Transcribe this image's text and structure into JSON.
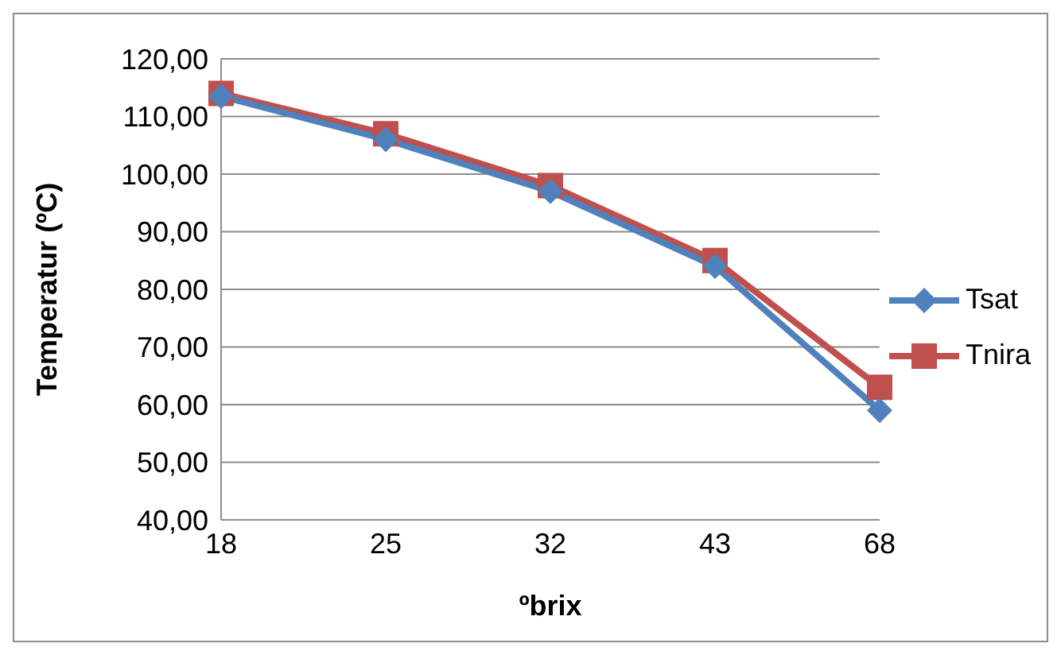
{
  "chart_data": {
    "type": "line",
    "xlabel": "ºbrix",
    "ylabel": "Temperatur (ºC)",
    "categories": [
      "18",
      "25",
      "32",
      "43",
      "68"
    ],
    "series": [
      {
        "name": "Tsat",
        "color": "#4f81bd",
        "marker": "diamond",
        "values": [
          113.5,
          106,
          97,
          84,
          59
        ]
      },
      {
        "name": "Tnira",
        "color": "#c0504d",
        "marker": "square",
        "values": [
          114,
          107,
          98,
          85,
          63
        ]
      }
    ],
    "ylim": [
      40,
      120
    ],
    "yticks": [
      {
        "value": 40,
        "label": "40,00"
      },
      {
        "value": 50,
        "label": "50,00"
      },
      {
        "value": 60,
        "label": "60,00"
      },
      {
        "value": 70,
        "label": "70,00"
      },
      {
        "value": 80,
        "label": "80,00"
      },
      {
        "value": 90,
        "label": "90,00"
      },
      {
        "value": 100,
        "label": "100,00"
      },
      {
        "value": 110,
        "label": "110,00"
      },
      {
        "value": 120,
        "label": "120,00"
      }
    ],
    "grid": "y",
    "legend": "right"
  }
}
